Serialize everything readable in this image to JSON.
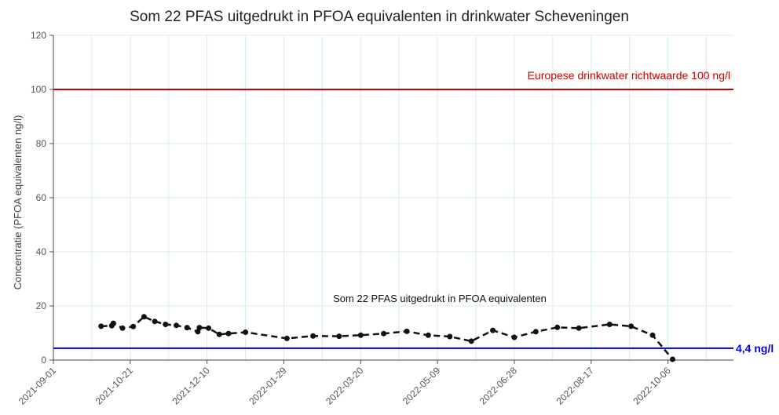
{
  "chart_data": {
    "type": "line",
    "title": "Som 22 PFAS uitgedrukt in PFOA equivalenten in drinkwater Scheveningen",
    "xlabel": "",
    "ylabel": "Concentratie (PFOA equivalenten ng/l)",
    "ylim": [
      0,
      120
    ],
    "y_ticks": [
      0,
      20,
      40,
      60,
      80,
      100,
      120
    ],
    "xlim": [
      "2021-09-01",
      "2022-11-15"
    ],
    "x_ticks": [
      "2021-09-01",
      "2021-10-21",
      "2021-12-10",
      "2022-01-29",
      "2022-03-20",
      "2022-05-09",
      "2022-06-28",
      "2022-08-17",
      "2022-10-06"
    ],
    "grid": true,
    "series": [
      {
        "name": "Som 22 PFAS uitgedrukt in PFOA equivalenten",
        "color": "#111111",
        "style": "dashed",
        "x": [
          "2021-10-02",
          "2021-10-09",
          "2021-10-10",
          "2021-10-16",
          "2021-10-23",
          "2021-10-30",
          "2021-11-06",
          "2021-11-13",
          "2021-11-20",
          "2021-11-27",
          "2021-12-04",
          "2021-12-05",
          "2021-12-11",
          "2021-12-18",
          "2021-12-24",
          "2022-01-04",
          "2022-01-31",
          "2022-02-17",
          "2022-03-06",
          "2022-03-20",
          "2022-04-04",
          "2022-04-19",
          "2022-05-03",
          "2022-05-17",
          "2022-05-31",
          "2022-06-14",
          "2022-06-28",
          "2022-07-12",
          "2022-07-26",
          "2022-08-09",
          "2022-08-29",
          "2022-09-12",
          "2022-09-26",
          "2022-10-09"
        ],
        "values": [
          12.5,
          12.7,
          13.6,
          11.8,
          12.4,
          16.0,
          14.3,
          13.2,
          12.8,
          12.0,
          10.5,
          12.0,
          11.8,
          9.5,
          9.8,
          10.3,
          8.0,
          8.9,
          8.8,
          9.2,
          9.8,
          10.6,
          9.2,
          8.7,
          7.0,
          11.0,
          8.4,
          10.5,
          12.1,
          11.8,
          13.2,
          12.5,
          9.2,
          0.3
        ]
      }
    ],
    "reference_lines": [
      {
        "label": "Europese drinkwater richtwaarde 100 ng/l",
        "value": 100,
        "color": "#cc0000"
      },
      {
        "label": "4,4 ng/l",
        "value": 4.4,
        "color": "#0000cc"
      }
    ],
    "annotations": [
      {
        "text": "Som 22 PFAS uitgedrukt in PFOA equivalenten"
      }
    ]
  }
}
